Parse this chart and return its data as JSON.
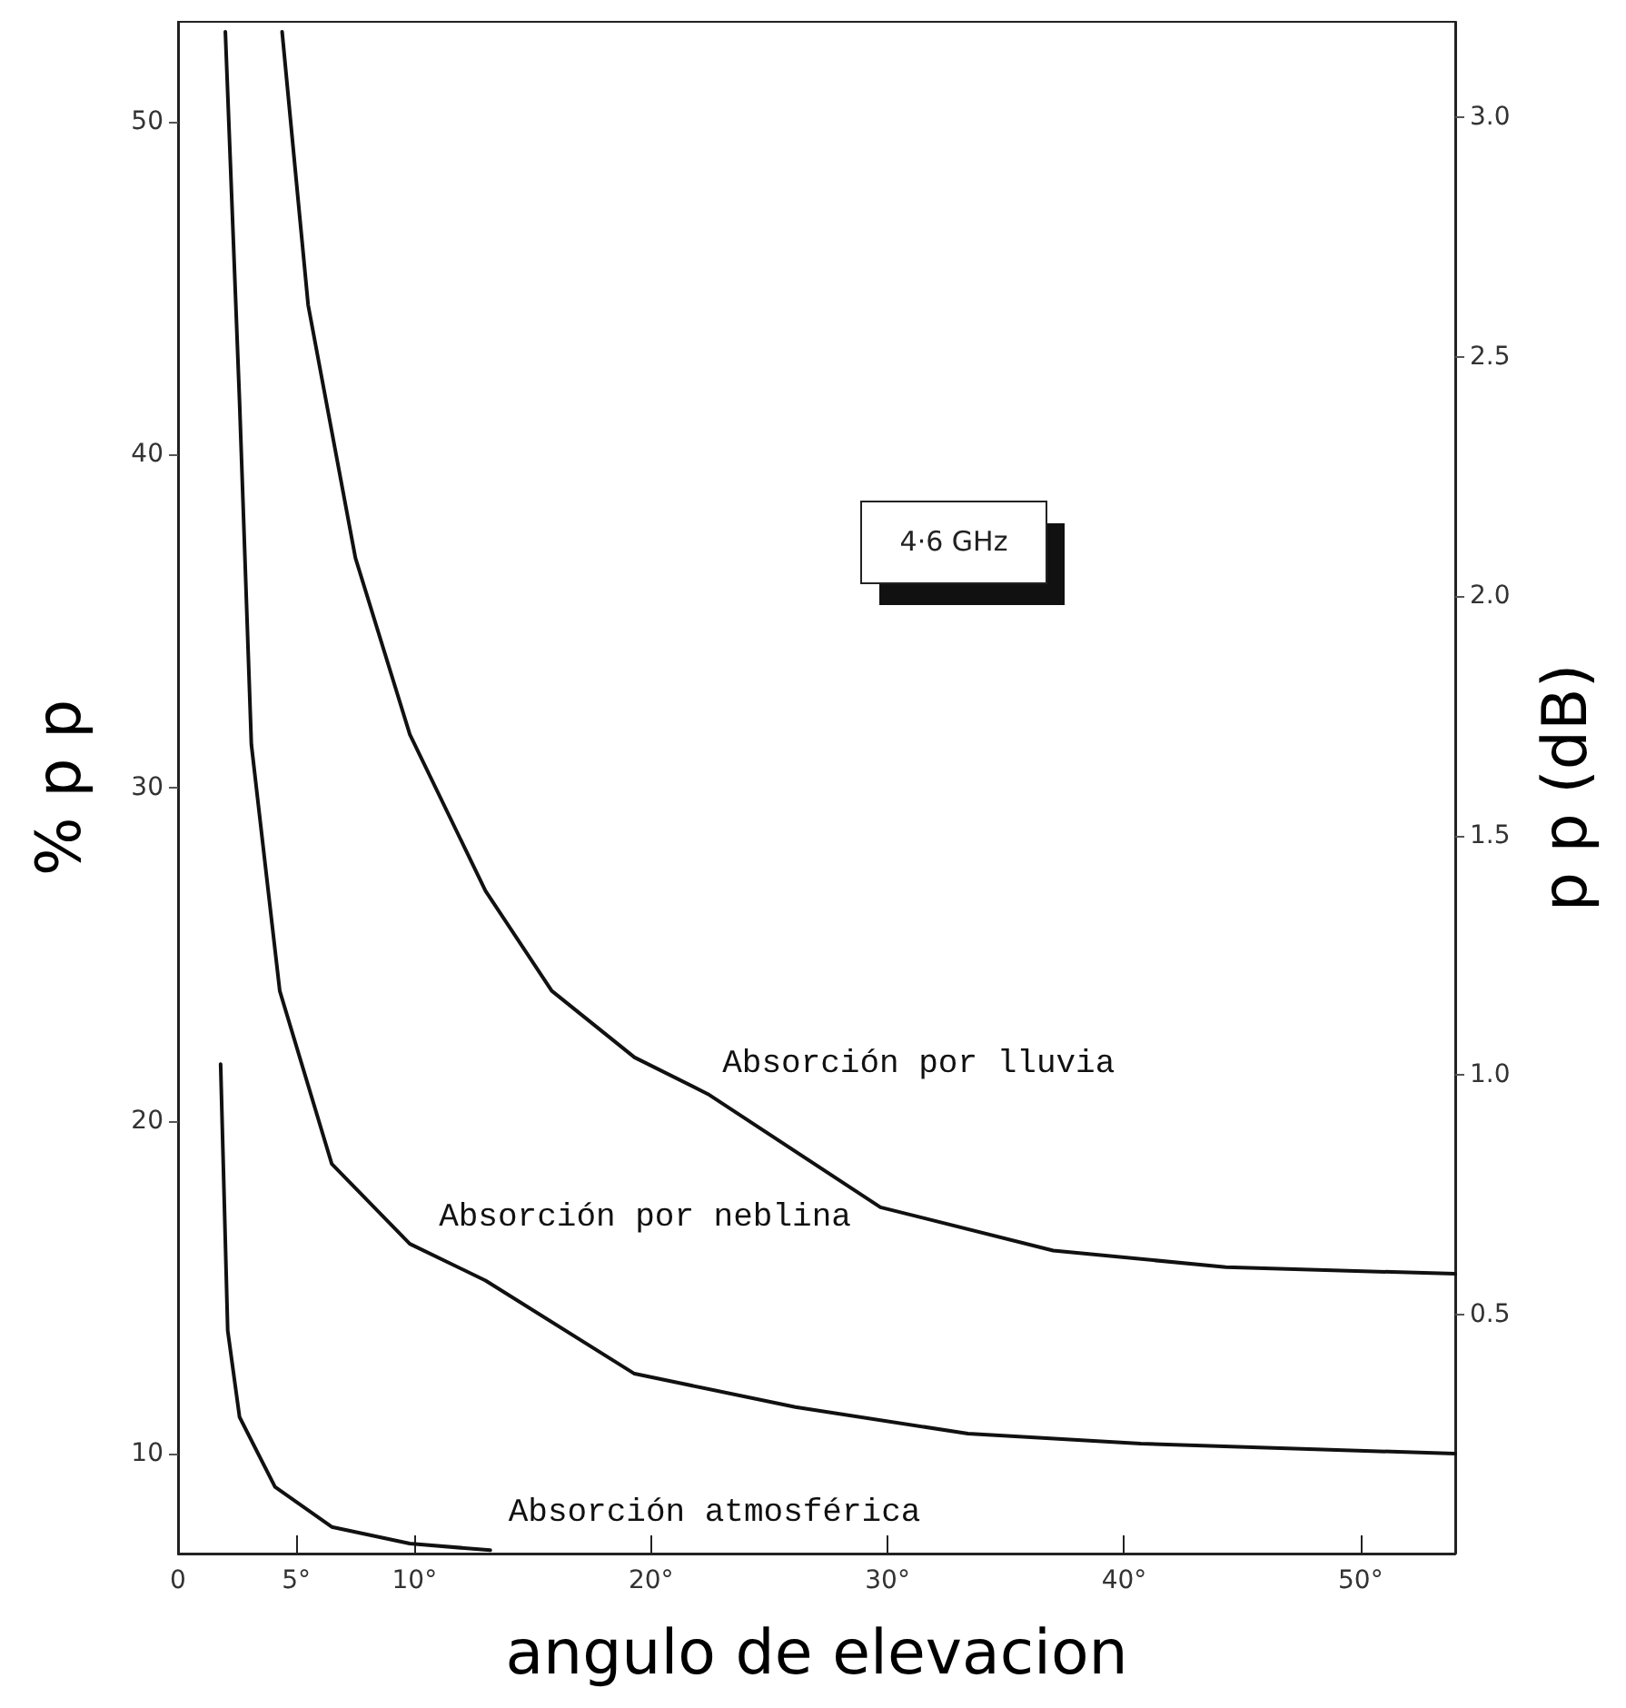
{
  "chart_data": {
    "type": "line",
    "xlabel": "angulo de elevacion",
    "ylabel": "% p p",
    "y2label": "p p (dB)",
    "xlim": [
      0,
      54
    ],
    "xticks": [
      0,
      {
        "value": 5,
        "label": "5°"
      },
      {
        "value": 10,
        "label": "10°"
      },
      {
        "value": 20,
        "label": "20°"
      },
      {
        "value": 30,
        "label": "30°"
      },
      {
        "value": 40,
        "label": "40°"
      },
      {
        "value": 50,
        "label": "50°"
      }
    ],
    "ylim": [
      7,
      53
    ],
    "yticks": [
      10,
      20,
      30,
      40,
      50
    ],
    "y2lim": [
      0,
      3.2
    ],
    "y2ticks": [
      0.5,
      {
        "value": 1,
        "label": "1.0"
      },
      1.5,
      {
        "value": 2,
        "label": "2.0"
      },
      2.5,
      {
        "value": 3,
        "label": "3.0"
      }
    ],
    "grid": false,
    "legend": false,
    "marker": "none",
    "line_style": "solid",
    "series": [
      {
        "name": "Absorción por lluvia",
        "color": "#111111",
        "x": [
          4.4,
          5.5,
          7.5,
          9.8,
          13.0,
          15.8,
          19.3,
          22.4,
          29.7,
          37.0,
          44.3,
          54
        ],
        "values": [
          52.7,
          44.5,
          36.9,
          31.6,
          26.9,
          23.9,
          21.9,
          20.8,
          17.4,
          16.1,
          15.6,
          15.4
        ]
      },
      {
        "name": "Absorción por neblina",
        "color": "#111111",
        "x": [
          2.0,
          2.6,
          3.1,
          4.3,
          6.5,
          9.8,
          13.0,
          19.3,
          26.1,
          33.4,
          40.7,
          54
        ],
        "values": [
          52.7,
          41.6,
          31.3,
          23.9,
          18.7,
          16.3,
          15.2,
          12.4,
          11.4,
          10.6,
          10.3,
          10.0
        ]
      },
      {
        "name": "Absorción atmosférica",
        "color": "#111111",
        "x": [
          1.8,
          2.1,
          2.6,
          4.1,
          6.5,
          9.8,
          13.2
        ],
        "values": [
          21.7,
          13.7,
          11.1,
          9.0,
          7.8,
          7.3,
          7.1
        ]
      }
    ],
    "annotations": [
      "4·6 GHz"
    ]
  }
}
